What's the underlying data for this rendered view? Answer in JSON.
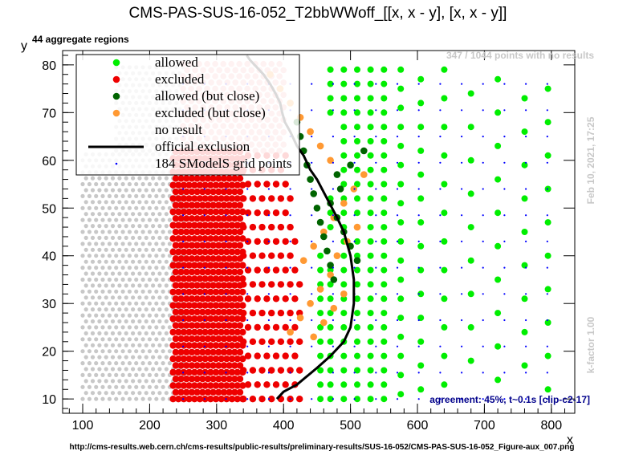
{
  "chart_data": {
    "type": "scatter",
    "title": "CMS-PAS-SUS-16-052_T2bbWWoff_[[x, x - y], [x, x - y]]",
    "xlabel": "x",
    "ylabel": "y",
    "xlim": [
      70,
      835
    ],
    "ylim": [
      7,
      83
    ],
    "x_ticks": [
      100,
      200,
      300,
      400,
      500,
      600,
      700,
      800
    ],
    "y_ticks": [
      10,
      20,
      30,
      40,
      50,
      60,
      70,
      80
    ],
    "top_left_label": "44 aggregate regions",
    "top_right_note": "347 / 1044 points with no results",
    "timestamp": "Feb 10, 2021, 17:25",
    "k_factor": "k-factor 1.00",
    "agreement": "agreement: 45%, t~0.1s [clip-c2-17]",
    "source_url": "http://cms-results.web.cern.ch/cms-results/public-results/preliminary-results/SUS-16-052/CMS-PAS-SUS-16-052_Figure-aux_007.png",
    "colors": {
      "allowed": "#00ee00",
      "excluded": "#ee0000",
      "allowed_close": "#006400",
      "excluded_close": "#ff9933",
      "no_result": "#c8c8c8",
      "official": "#000000",
      "grid": "#0000ff",
      "excluded_faded": "#f4a6a6"
    },
    "legend": {
      "placement": "top-left",
      "entries": [
        {
          "key": "allowed",
          "label": "allowed",
          "marker": "dot"
        },
        {
          "key": "excluded",
          "label": "excluded",
          "marker": "dot"
        },
        {
          "key": "allowed_close",
          "label": "allowed (but close)",
          "marker": "dot"
        },
        {
          "key": "excluded_close",
          "label": "excluded (but close)",
          "marker": "dot"
        },
        {
          "key": "no_result",
          "label": "no result",
          "marker": "none"
        },
        {
          "key": "official",
          "label": "official exclusion",
          "marker": "line"
        },
        {
          "key": "grid",
          "label": "184 SModelS grid points",
          "marker": "tiny"
        }
      ]
    },
    "series": [
      {
        "name": "official exclusion",
        "type": "line",
        "x": [
          390,
          400,
          420,
          450,
          470,
          490,
          500,
          505,
          505,
          500,
          490,
          480,
          465,
          450,
          440,
          430,
          420,
          410,
          402,
          398,
          395,
          388,
          380,
          370,
          360,
          350,
          345
        ],
        "y": [
          10,
          11.5,
          13,
          16.5,
          19,
          22,
          25,
          30,
          35,
          40,
          45,
          48,
          52,
          56,
          58,
          61,
          63,
          66,
          68,
          70,
          72,
          74,
          76,
          78,
          79.5,
          81,
          82
        ]
      }
    ],
    "point_regions": [
      {
        "key": "no_result",
        "x": [
          100,
          250
        ],
        "y": [
          10,
          62
        ],
        "dx": 10,
        "dy": 1.25
      },
      {
        "key": "no_result",
        "x": [
          150,
          250
        ],
        "y": [
          62,
          80
        ],
        "dx": 10,
        "dy": 1.25
      },
      {
        "key": "excluded_faded",
        "x": [
          250,
          400
        ],
        "y": [
          62,
          81
        ],
        "dx": 12,
        "dy": 1.3
      },
      {
        "key": "excluded",
        "x": [
          235,
          340
        ],
        "y": [
          10,
          63
        ],
        "dx": 8,
        "dy": 1.4
      },
      {
        "key": "excluded",
        "x": [
          340,
          430
        ],
        "y": [
          10,
          63
        ],
        "dx": 14,
        "dy": 3
      }
    ],
    "allowed_points": {
      "columns": [
        {
          "x": 455,
          "y": [
            10,
            13,
            16,
            19,
            22,
            25,
            28,
            31,
            34,
            37,
            40
          ]
        },
        {
          "x": 470,
          "y": [
            10,
            13,
            16,
            19,
            22,
            25,
            28,
            31,
            34,
            37,
            46,
            49,
            52,
            70,
            73,
            76,
            79
          ]
        },
        {
          "x": 490,
          "y": [
            10,
            13,
            16,
            19,
            22,
            25,
            28,
            31,
            34,
            37,
            40,
            43,
            46,
            49,
            52,
            55,
            58,
            61,
            64,
            67,
            70,
            73,
            76,
            79
          ]
        },
        {
          "x": 510,
          "y": [
            10,
            13,
            16,
            19,
            22,
            25,
            28,
            31,
            34,
            37,
            40,
            43,
            46,
            49,
            52,
            55,
            58,
            61,
            64,
            67,
            70,
            73,
            76,
            79
          ]
        },
        {
          "x": 530,
          "y": [
            10,
            13,
            16,
            19,
            22,
            25,
            28,
            31,
            34,
            37,
            40,
            43,
            46,
            49,
            52,
            55,
            58,
            61,
            64,
            67,
            70,
            73,
            76,
            79
          ]
        },
        {
          "x": 550,
          "y": [
            10,
            13,
            16,
            19,
            22,
            25,
            28,
            31,
            34,
            37,
            40,
            43,
            46,
            49,
            52,
            55,
            58,
            61,
            64,
            67,
            70,
            73,
            76,
            79
          ]
        },
        {
          "x": 575,
          "y": [
            11,
            15,
            19,
            23,
            27,
            31,
            35,
            39,
            43,
            47,
            51,
            55,
            59,
            63,
            67,
            71,
            75,
            79
          ]
        },
        {
          "x": 605,
          "y": [
            12,
            17,
            22,
            27,
            32,
            37,
            42,
            47,
            52,
            57,
            62,
            67,
            72,
            77
          ]
        },
        {
          "x": 640,
          "y": [
            13,
            19,
            25,
            31,
            37,
            43,
            49,
            55,
            61,
            67,
            73,
            79
          ]
        },
        {
          "x": 680,
          "y": [
            18,
            25,
            32,
            39,
            46,
            53,
            60,
            67,
            74
          ]
        },
        {
          "x": 720,
          "y": [
            14,
            21,
            28,
            35,
            42,
            49,
            56,
            63,
            70,
            77
          ]
        },
        {
          "x": 760,
          "y": [
            17,
            24,
            31,
            38,
            45,
            52,
            59,
            66,
            73
          ]
        },
        {
          "x": 795,
          "y": [
            12,
            19,
            26,
            33,
            40,
            47,
            54,
            61,
            68,
            75
          ]
        }
      ]
    },
    "allowed_close_points": {
      "x": [
        420,
        425,
        430,
        435,
        440,
        445,
        450,
        455,
        460,
        465,
        470,
        475,
        480,
        485,
        470,
        480,
        490,
        500,
        510,
        520,
        500
      ],
      "y": [
        68,
        65,
        62,
        59,
        56,
        53,
        50,
        47,
        44,
        41,
        38,
        35,
        57,
        54,
        51,
        48,
        45,
        42,
        39,
        62,
        59
      ]
    },
    "excluded_close_points": {
      "x": [
        380,
        395,
        410,
        425,
        440,
        455,
        470,
        410,
        425,
        440,
        455,
        470,
        445,
        460,
        475,
        490,
        430,
        445,
        460,
        475,
        490,
        505,
        520,
        480,
        495,
        510
      ],
      "y": [
        78,
        75,
        72,
        69,
        66,
        63,
        60,
        24,
        27,
        30,
        33,
        36,
        23,
        26,
        29,
        32,
        39,
        42,
        45,
        48,
        51,
        54,
        57,
        40,
        43,
        46
      ]
    },
    "grid_points": {
      "x": [
        250,
        810
      ],
      "y": [
        10,
        80
      ],
      "dx": 32,
      "dy": 5.5
    }
  }
}
